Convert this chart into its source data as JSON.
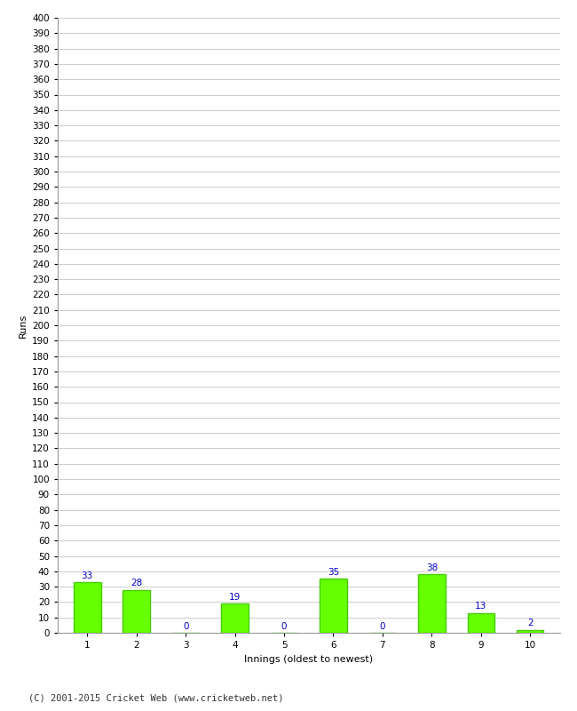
{
  "categories": [
    "1",
    "2",
    "3",
    "4",
    "5",
    "6",
    "7",
    "8",
    "9",
    "10"
  ],
  "values": [
    33,
    28,
    0,
    19,
    0,
    35,
    0,
    38,
    13,
    2
  ],
  "bar_color": "#66ff00",
  "bar_edgecolor": "#44cc00",
  "label_color": "#0000cc",
  "xlabel": "Innings (oldest to newest)",
  "ylabel": "Runs",
  "ylim": [
    0,
    400
  ],
  "footer": "(C) 2001-2015 Cricket Web (www.cricketweb.net)",
  "background_color": "#ffffff",
  "grid_color": "#cccccc",
  "label_fontsize": 7.5,
  "axis_tick_fontsize": 7.5,
  "axis_label_fontsize": 8,
  "footer_fontsize": 7.5,
  "bar_width": 0.55
}
